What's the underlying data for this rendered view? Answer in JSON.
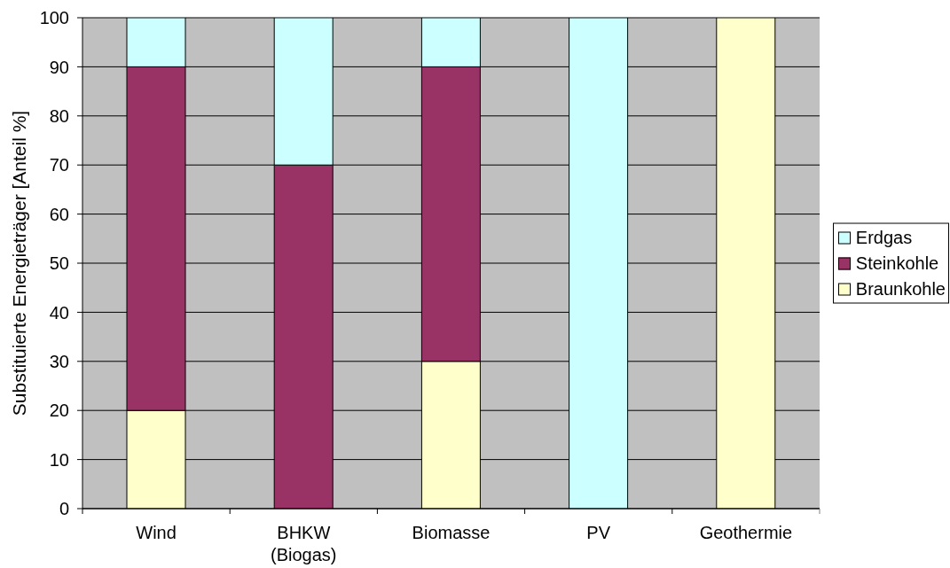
{
  "chart_data": {
    "type": "bar",
    "stacked": true,
    "categories": [
      "Wind",
      "BHKW\n(Biogas)",
      "Biomasse",
      "PV",
      "Geothermie"
    ],
    "series": [
      {
        "name": "Braunkohle",
        "color": "#ffffcc",
        "values": [
          20,
          0,
          30,
          0,
          100
        ]
      },
      {
        "name": "Steinkohle",
        "color": "#993366",
        "values": [
          70,
          70,
          60,
          0,
          0
        ]
      },
      {
        "name": "Erdgas",
        "color": "#ccffff",
        "values": [
          10,
          30,
          10,
          100,
          0
        ]
      }
    ],
    "ylabel": "Substituierte Energieträger [Anteil %]",
    "ylim": [
      0,
      100
    ],
    "yticks": [
      0,
      10,
      20,
      30,
      40,
      50,
      60,
      70,
      80,
      90,
      100
    ],
    "grid": "y",
    "legend": "right"
  }
}
